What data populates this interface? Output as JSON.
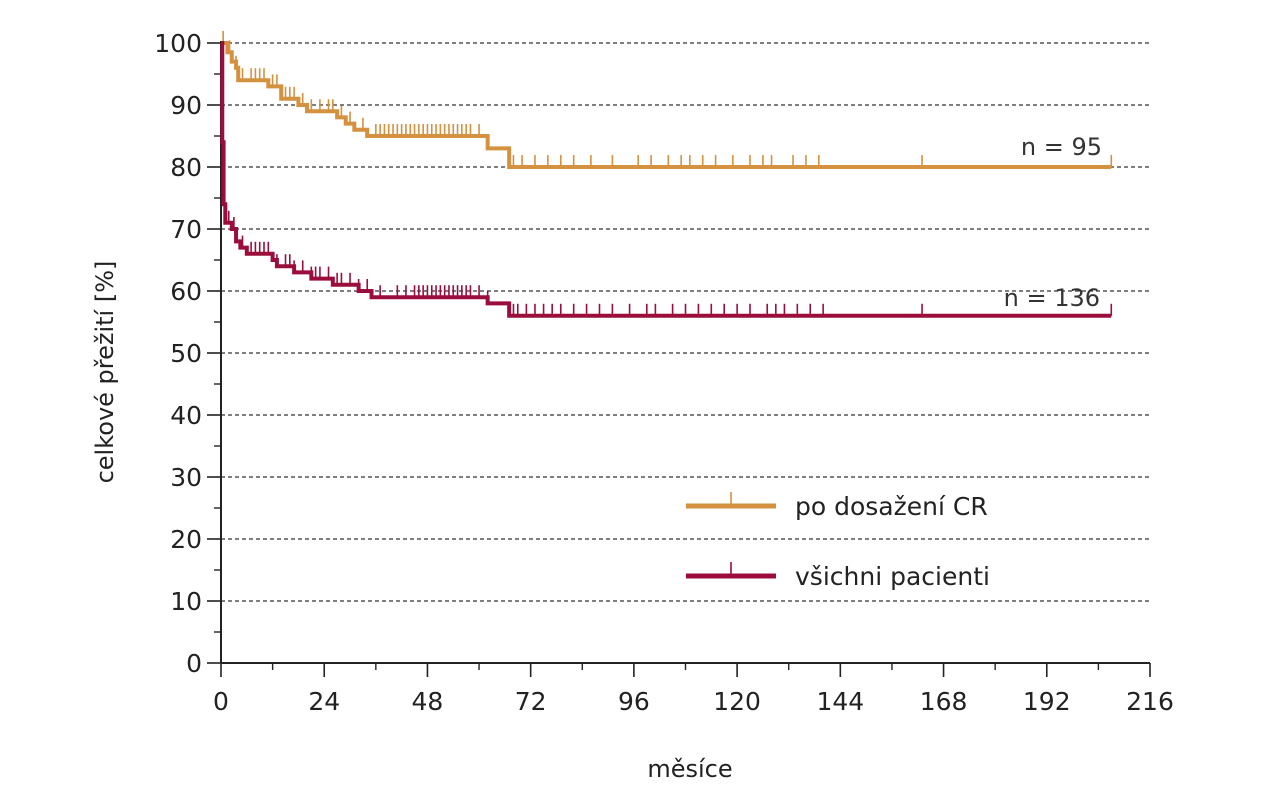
{
  "chart_data": {
    "type": "line",
    "subtype": "kaplan-meier",
    "title": "",
    "xlabel": "měsíce",
    "ylabel": "celkové přežití [%]",
    "xlim": [
      0,
      216
    ],
    "ylim": [
      0,
      100
    ],
    "x_ticks": [
      0,
      24,
      48,
      72,
      96,
      120,
      144,
      168,
      192,
      216
    ],
    "y_ticks": [
      0,
      10,
      20,
      30,
      40,
      50,
      60,
      70,
      80,
      90,
      100
    ],
    "x_tick_labels": [
      "0",
      "24",
      "48",
      "72",
      "96",
      "120",
      "144",
      "168",
      "192",
      "216"
    ],
    "y_tick_labels": [
      "0",
      "10",
      "20",
      "30",
      "40",
      "50",
      "60",
      "70",
      "80",
      "90",
      "100"
    ],
    "grid": "horizontal-dashed",
    "legend_position": "bottom-right",
    "legend": [
      "po dosažení CR",
      "všichni pacienti"
    ],
    "annotations": [
      "n = 95",
      "n = 136"
    ],
    "series": [
      {
        "name": "po dosažení CR",
        "color": "#d4913f",
        "annotation": "n = 95",
        "steps": [
          [
            0,
            100
          ],
          [
            1.5,
            98.5
          ],
          [
            2.5,
            97
          ],
          [
            3.5,
            96
          ],
          [
            4,
            94
          ],
          [
            11,
            93
          ],
          [
            14,
            91
          ],
          [
            18,
            90
          ],
          [
            20,
            89
          ],
          [
            27,
            88
          ],
          [
            29,
            87
          ],
          [
            31,
            86
          ],
          [
            34,
            85
          ],
          [
            62,
            83
          ],
          [
            67,
            80
          ],
          [
            207,
            80
          ]
        ],
        "censors": [
          0.5,
          2,
          3.5,
          5,
          7,
          8,
          9,
          10,
          12,
          13,
          15,
          16,
          17,
          19,
          21,
          23,
          25,
          26,
          28,
          30,
          33,
          36,
          37,
          38,
          39,
          40,
          41,
          42,
          43,
          44,
          45,
          46,
          47,
          48,
          49,
          50,
          51,
          52,
          53,
          54,
          55,
          56,
          57,
          58,
          60,
          62,
          68,
          70,
          73,
          76,
          79,
          82,
          86,
          91,
          97,
          100,
          104,
          107,
          109,
          112,
          115,
          119,
          123,
          126,
          128,
          133,
          136,
          139,
          163,
          207
        ]
      },
      {
        "name": "všichni pacienti",
        "color": "#9b0e3c",
        "annotation": "n = 136",
        "steps": [
          [
            0,
            100
          ],
          [
            0.3,
            84
          ],
          [
            0.6,
            74
          ],
          [
            1,
            71
          ],
          [
            2.5,
            70
          ],
          [
            3.5,
            68
          ],
          [
            4.5,
            67
          ],
          [
            6,
            66
          ],
          [
            12,
            65
          ],
          [
            13,
            64
          ],
          [
            17,
            63
          ],
          [
            21,
            62
          ],
          [
            26,
            61
          ],
          [
            32,
            60
          ],
          [
            35,
            59
          ],
          [
            62,
            58
          ],
          [
            67,
            56
          ],
          [
            207,
            56
          ]
        ],
        "censors": [
          0.8,
          1.8,
          3,
          5,
          7,
          8,
          9,
          10,
          11,
          13,
          15,
          16,
          17,
          19,
          21,
          22,
          23,
          25,
          27,
          28,
          30,
          32,
          34,
          37,
          41,
          43,
          45,
          46,
          47,
          48,
          49,
          50,
          51,
          52,
          53,
          54,
          55,
          56,
          57,
          58,
          60,
          62,
          68,
          69,
          71,
          73,
          75,
          77,
          79,
          82,
          85,
          88,
          91,
          95,
          99,
          101,
          105,
          108,
          111,
          114,
          117,
          120,
          123,
          127,
          129,
          131,
          134,
          137,
          140,
          163,
          207
        ]
      }
    ]
  }
}
